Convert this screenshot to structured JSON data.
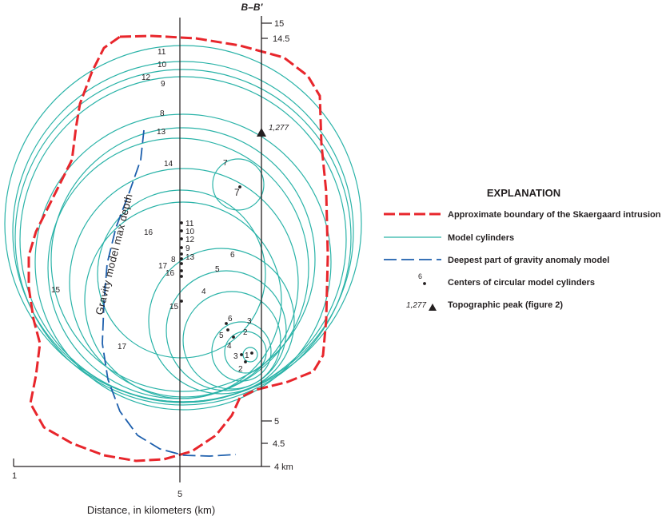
{
  "section_label": "B–B′",
  "peak_label": "1,277",
  "vertical_scale": {
    "ticks": [
      {
        "label": "15"
      },
      {
        "label": "14.5"
      },
      {
        "label": "5"
      },
      {
        "label": "4.5"
      },
      {
        "label": "4 km"
      }
    ]
  },
  "horizontal_axis": {
    "title": "Distance, in kilometers (km)",
    "tick_left": "1",
    "tick_mid": "5"
  },
  "curve_label": "Gravity model max depth",
  "circles": [
    {
      "id": "1"
    },
    {
      "id": "2"
    },
    {
      "id": "3"
    },
    {
      "id": "4"
    },
    {
      "id": "5"
    },
    {
      "id": "6"
    },
    {
      "id": "7"
    },
    {
      "id": "8"
    },
    {
      "id": "9"
    },
    {
      "id": "10"
    },
    {
      "id": "11"
    },
    {
      "id": "12"
    },
    {
      "id": "13"
    },
    {
      "id": "14"
    },
    {
      "id": "15"
    },
    {
      "id": "16"
    },
    {
      "id": "17"
    }
  ],
  "centers": [
    {
      "id": "11"
    },
    {
      "id": "10"
    },
    {
      "id": "12"
    },
    {
      "id": "9"
    },
    {
      "id": "8"
    },
    {
      "id": "13"
    },
    {
      "id": "17"
    },
    {
      "id": "16"
    },
    {
      "id": "15"
    },
    {
      "id": "7"
    },
    {
      "id": "6"
    },
    {
      "id": "5"
    },
    {
      "id": "4"
    },
    {
      "id": "3"
    },
    {
      "id": "1"
    },
    {
      "id": "2"
    }
  ],
  "legend": {
    "title": "EXPLANATION",
    "items": [
      {
        "label": "Approximate boundary of the Skaergaard intrusion",
        "color": "#e8262c"
      },
      {
        "label": "Model cylinders",
        "color": "#2ab3a8"
      },
      {
        "label": "Deepest part of gravity anomaly model",
        "color": "#1d5fad"
      },
      {
        "label": "Centers of circular model cylinders",
        "sample": "6"
      },
      {
        "label": "Topographic peak (figure 2)",
        "sample": "1,277"
      }
    ]
  },
  "colors": {
    "boundary": "#e8262c",
    "cylinder": "#2ab3a8",
    "gravity": "#1d5fad",
    "ink": "#231f20"
  }
}
